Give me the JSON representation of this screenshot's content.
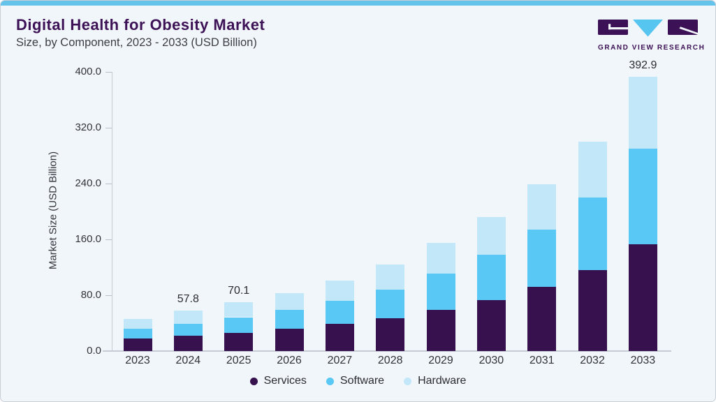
{
  "header": {
    "title": "Digital Health for Obesity Market",
    "subtitle": "Size, by Component, 2023 - 2033 (USD Billion)"
  },
  "logo": {
    "name": "GRAND VIEW RESEARCH"
  },
  "colors": {
    "accent_top_bar": "#63c3ea",
    "brand_purple": "#3c1155",
    "subtitle_text": "#3e3e46",
    "axis_text": "#33333b",
    "background": "#f1f6fa",
    "services": "#36114d",
    "software": "#5ac8f5",
    "hardware": "#c1e7f8"
  },
  "chart_data": {
    "type": "bar",
    "stacked": true,
    "title": "Digital Health for Obesity Market Size, by Component, 2023 - 2033 (USD Billion)",
    "xlabel": "",
    "ylabel": "Market Size (USD Billion)",
    "ylim": [
      0,
      400
    ],
    "yticks": [
      "0.0",
      "80.0",
      "160.0",
      "240.0",
      "320.0",
      "400.0"
    ],
    "grid": false,
    "legend_position": "bottom",
    "categories": [
      "2023",
      "2024",
      "2025",
      "2026",
      "2027",
      "2028",
      "2029",
      "2030",
      "2031",
      "2032",
      "2033"
    ],
    "series": [
      {
        "name": "Services",
        "color": "#36114d",
        "values": [
          18.0,
          22.0,
          26.5,
          32.0,
          39.0,
          47.5,
          59.5,
          73.5,
          92.5,
          116.5,
          153.0
        ]
      },
      {
        "name": "Software",
        "color": "#5ac8f5",
        "values": [
          14.1,
          17.4,
          22.0,
          27.0,
          33.5,
          41.0,
          52.0,
          64.5,
          81.5,
          103.5,
          137.4
        ]
      },
      {
        "name": "Hardware",
        "color": "#c1e7f8",
        "values": [
          14.3,
          18.4,
          21.6,
          24.0,
          29.0,
          36.0,
          44.0,
          54.0,
          65.5,
          80.5,
          102.5
        ]
      }
    ],
    "totals": [
      46.4,
      57.8,
      70.1,
      83.0,
      101.5,
      124.5,
      155.5,
      192.0,
      239.5,
      300.5,
      392.9
    ],
    "bar_labels": [
      "",
      "57.8",
      "70.1",
      "",
      "",
      "",
      "",
      "",
      "",
      "",
      "392.9"
    ]
  }
}
